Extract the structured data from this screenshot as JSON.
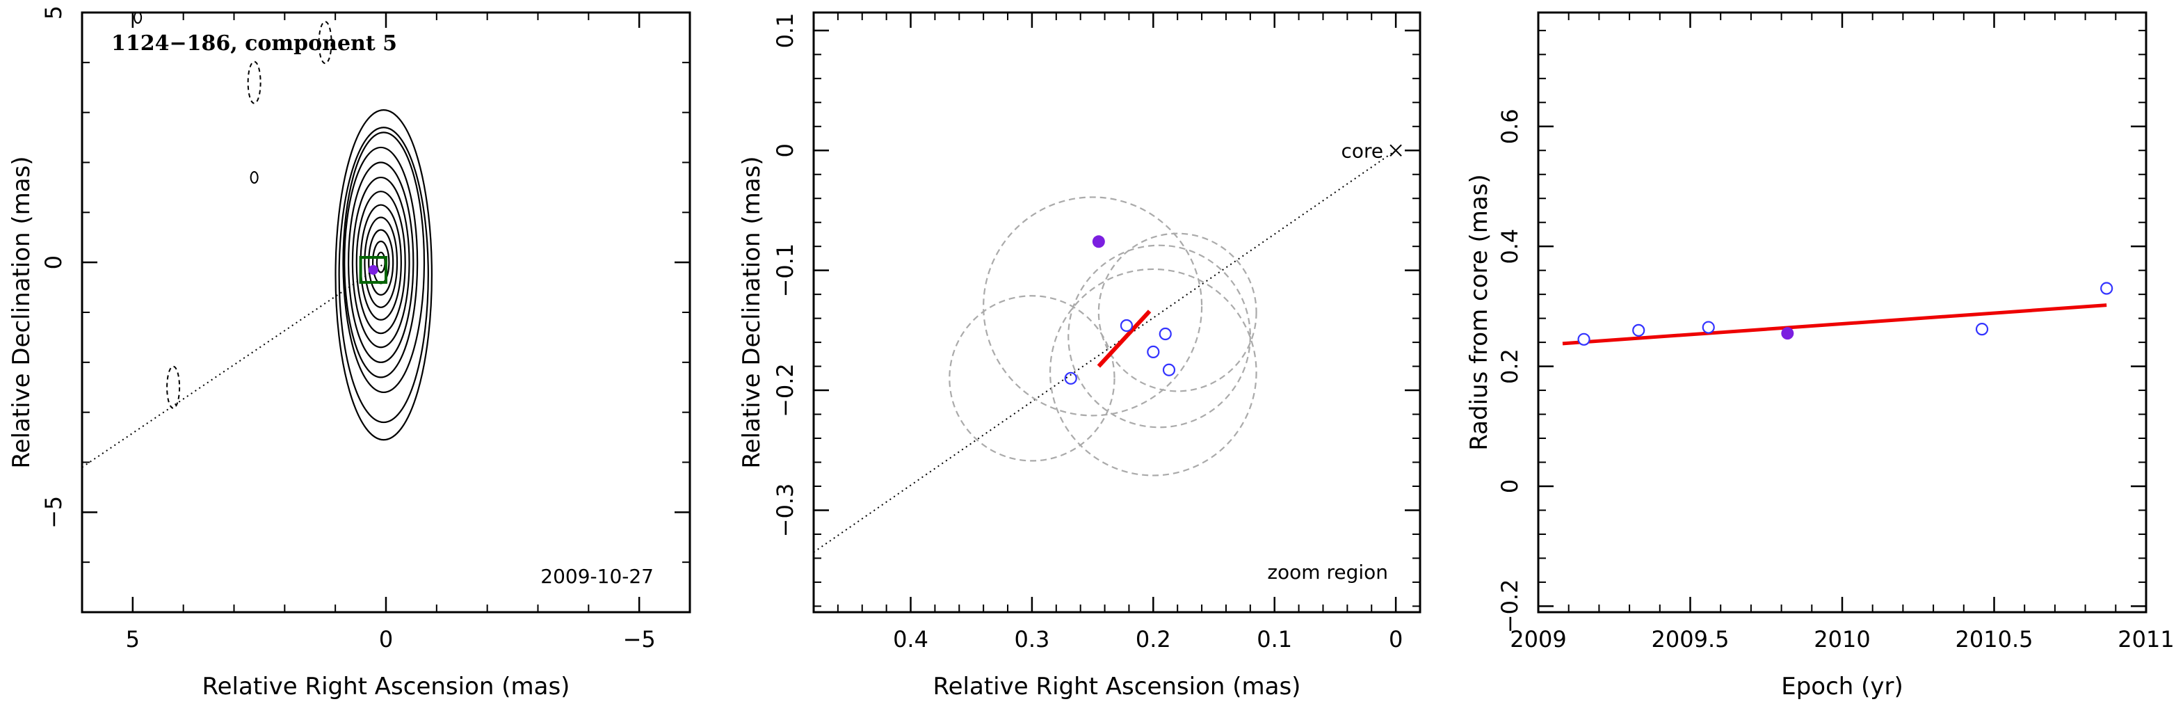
{
  "chart_data": [
    {
      "type": "contour",
      "title": "1124−186, component 5",
      "date_label": "2009-10-27",
      "xlabel": "Relative Right Ascension (mas)",
      "ylabel": "Relative Declination (mas)",
      "xlim": [
        6,
        -6
      ],
      "ylim": [
        -7,
        5
      ],
      "xticks": [
        5,
        0,
        -5
      ],
      "xtick_labels": [
        "5",
        "0",
        "−5"
      ],
      "yticks": [
        5,
        0,
        -5
      ],
      "ytick_labels": [
        "5",
        "0",
        "−5"
      ],
      "contour_center": [
        0.1,
        0
      ],
      "contour_levels": 12,
      "contour_x_semi_axes": [
        0.95,
        0.88,
        0.8,
        0.72,
        0.64,
        0.56,
        0.48,
        0.4,
        0.32,
        0.24,
        0.16,
        0.08
      ],
      "contour_y_semi_axes": [
        3.3,
        2.95,
        2.6,
        2.3,
        2.0,
        1.7,
        1.42,
        1.15,
        0.9,
        0.65,
        0.42,
        0.2
      ],
      "component_position": [
        0.25,
        -0.15
      ],
      "marker_box_center": [
        0.25,
        -0.15
      ],
      "marker_box_size": 0.5,
      "negative_contours": [
        {
          "x": 4.2,
          "y": -2.5
        },
        {
          "x": 2.6,
          "y": 3.6
        },
        {
          "x": 1.2,
          "y": 4.4
        }
      ],
      "small_positive_contours": [
        {
          "x": 2.6,
          "y": 1.7
        },
        {
          "x": 4.9,
          "y": 4.9
        }
      ],
      "jet_axis_line": {
        "x": [
          6,
          0
        ],
        "y": [
          -4.1,
          0
        ]
      },
      "colors": {
        "contour": "#000000",
        "box": "#006400",
        "component": "#7b1fe0"
      }
    },
    {
      "type": "scatter",
      "annotation": "zoom region",
      "core_label": "core",
      "xlabel": "Relative Right Ascension (mas)",
      "ylabel": "Relative Declination (mas)",
      "xlim": [
        0.48,
        -0.02
      ],
      "ylim": [
        -0.385,
        0.115
      ],
      "xticks": [
        0.4,
        0.3,
        0.2,
        0.1,
        0
      ],
      "xtick_labels": [
        "0.4",
        "0.3",
        "0.2",
        "0.1",
        "0"
      ],
      "yticks": [
        0.1,
        0,
        -0.1,
        -0.2,
        -0.3
      ],
      "ytick_labels": [
        "0.1",
        "0",
        "−0.1",
        "−0.2",
        "−0.3"
      ],
      "core_position": [
        0,
        0
      ],
      "highlighted_point": {
        "x": 0.245,
        "y": -0.076
      },
      "points": [
        {
          "x": 0.268,
          "y": -0.19
        },
        {
          "x": 0.222,
          "y": -0.146
        },
        {
          "x": 0.2,
          "y": -0.168
        },
        {
          "x": 0.19,
          "y": -0.153
        },
        {
          "x": 0.187,
          "y": -0.183
        }
      ],
      "error_circles": [
        {
          "x": 0.25,
          "y": -0.13,
          "r": 0.09
        },
        {
          "x": 0.18,
          "y": -0.135,
          "r": 0.065
        },
        {
          "x": 0.195,
          "y": -0.155,
          "r": 0.075
        },
        {
          "x": 0.2,
          "y": -0.185,
          "r": 0.085
        },
        {
          "x": 0.3,
          "y": -0.19,
          "r": 0.068
        }
      ],
      "fit_line": {
        "x": [
          0.245,
          0.203
        ],
        "y": [
          -0.18,
          -0.134
        ]
      },
      "jet_axis_line": {
        "x": [
          0.48,
          0
        ],
        "y": [
          -0.335,
          0
        ]
      },
      "colors": {
        "points": "#3333ff",
        "highlight": "#7b1fe0",
        "fit": "#ee0000",
        "circles": "#aaaaaa"
      }
    },
    {
      "type": "scatter",
      "xlabel": "Epoch (yr)",
      "ylabel": "Radius from core (mas)",
      "xlim": [
        2009,
        2011
      ],
      "ylim": [
        -0.21,
        0.79
      ],
      "xticks": [
        2009,
        2009.5,
        2010,
        2010.5,
        2011
      ],
      "xtick_labels": [
        "2009",
        "2009.5",
        "2010",
        "2010.5",
        "2011"
      ],
      "yticks": [
        -0.2,
        0,
        0.2,
        0.4,
        0.6
      ],
      "ytick_labels": [
        "−0.2",
        "0",
        "0.2",
        "0.4",
        "0.6"
      ],
      "highlighted_point": {
        "x": 2009.82,
        "y": 0.255
      },
      "points": [
        {
          "x": 2009.15,
          "y": 0.245
        },
        {
          "x": 2009.33,
          "y": 0.26
        },
        {
          "x": 2009.56,
          "y": 0.265
        },
        {
          "x": 2010.46,
          "y": 0.262
        },
        {
          "x": 2010.87,
          "y": 0.33
        }
      ],
      "fit_line": {
        "x": [
          2009.08,
          2010.87
        ],
        "y": [
          0.238,
          0.302
        ]
      },
      "colors": {
        "points": "#3333ff",
        "highlight": "#7b1fe0",
        "fit": "#ee0000"
      }
    }
  ]
}
